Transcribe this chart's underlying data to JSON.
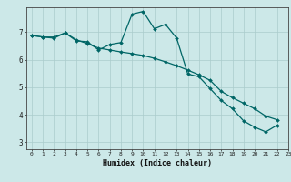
{
  "title": "",
  "xlabel": "Humidex (Indice chaleur)",
  "bg_color": "#cce8e8",
  "grid_color": "#aacccc",
  "line_color": "#006666",
  "xlim": [
    -0.5,
    23
  ],
  "ylim": [
    2.75,
    7.9
  ],
  "xticks": [
    0,
    1,
    2,
    3,
    4,
    5,
    6,
    7,
    8,
    9,
    10,
    11,
    12,
    13,
    14,
    15,
    16,
    17,
    18,
    19,
    20,
    21,
    22,
    23
  ],
  "yticks": [
    3,
    4,
    5,
    6,
    7
  ],
  "series1_x": [
    0,
    1,
    2,
    3,
    4,
    5,
    6,
    7,
    8,
    9,
    10,
    11,
    12,
    13,
    14,
    15,
    16,
    17,
    18,
    19,
    20,
    21,
    22
  ],
  "series1_y": [
    6.88,
    6.82,
    6.82,
    6.97,
    6.68,
    6.65,
    6.35,
    6.55,
    6.62,
    7.65,
    7.75,
    7.12,
    7.28,
    6.78,
    5.48,
    5.38,
    4.95,
    4.52,
    4.22,
    3.78,
    3.55,
    3.38,
    3.62
  ],
  "series2_x": [
    0,
    1,
    2,
    3,
    4,
    5,
    6,
    7,
    8,
    9,
    10,
    11,
    12,
    13,
    14,
    15,
    16,
    17,
    18,
    19,
    20,
    21,
    22
  ],
  "series2_y": [
    6.88,
    6.82,
    6.78,
    6.97,
    6.72,
    6.58,
    6.42,
    6.35,
    6.28,
    6.22,
    6.15,
    6.05,
    5.92,
    5.78,
    5.62,
    5.45,
    5.25,
    4.85,
    4.62,
    4.42,
    4.22,
    3.95,
    3.82
  ]
}
